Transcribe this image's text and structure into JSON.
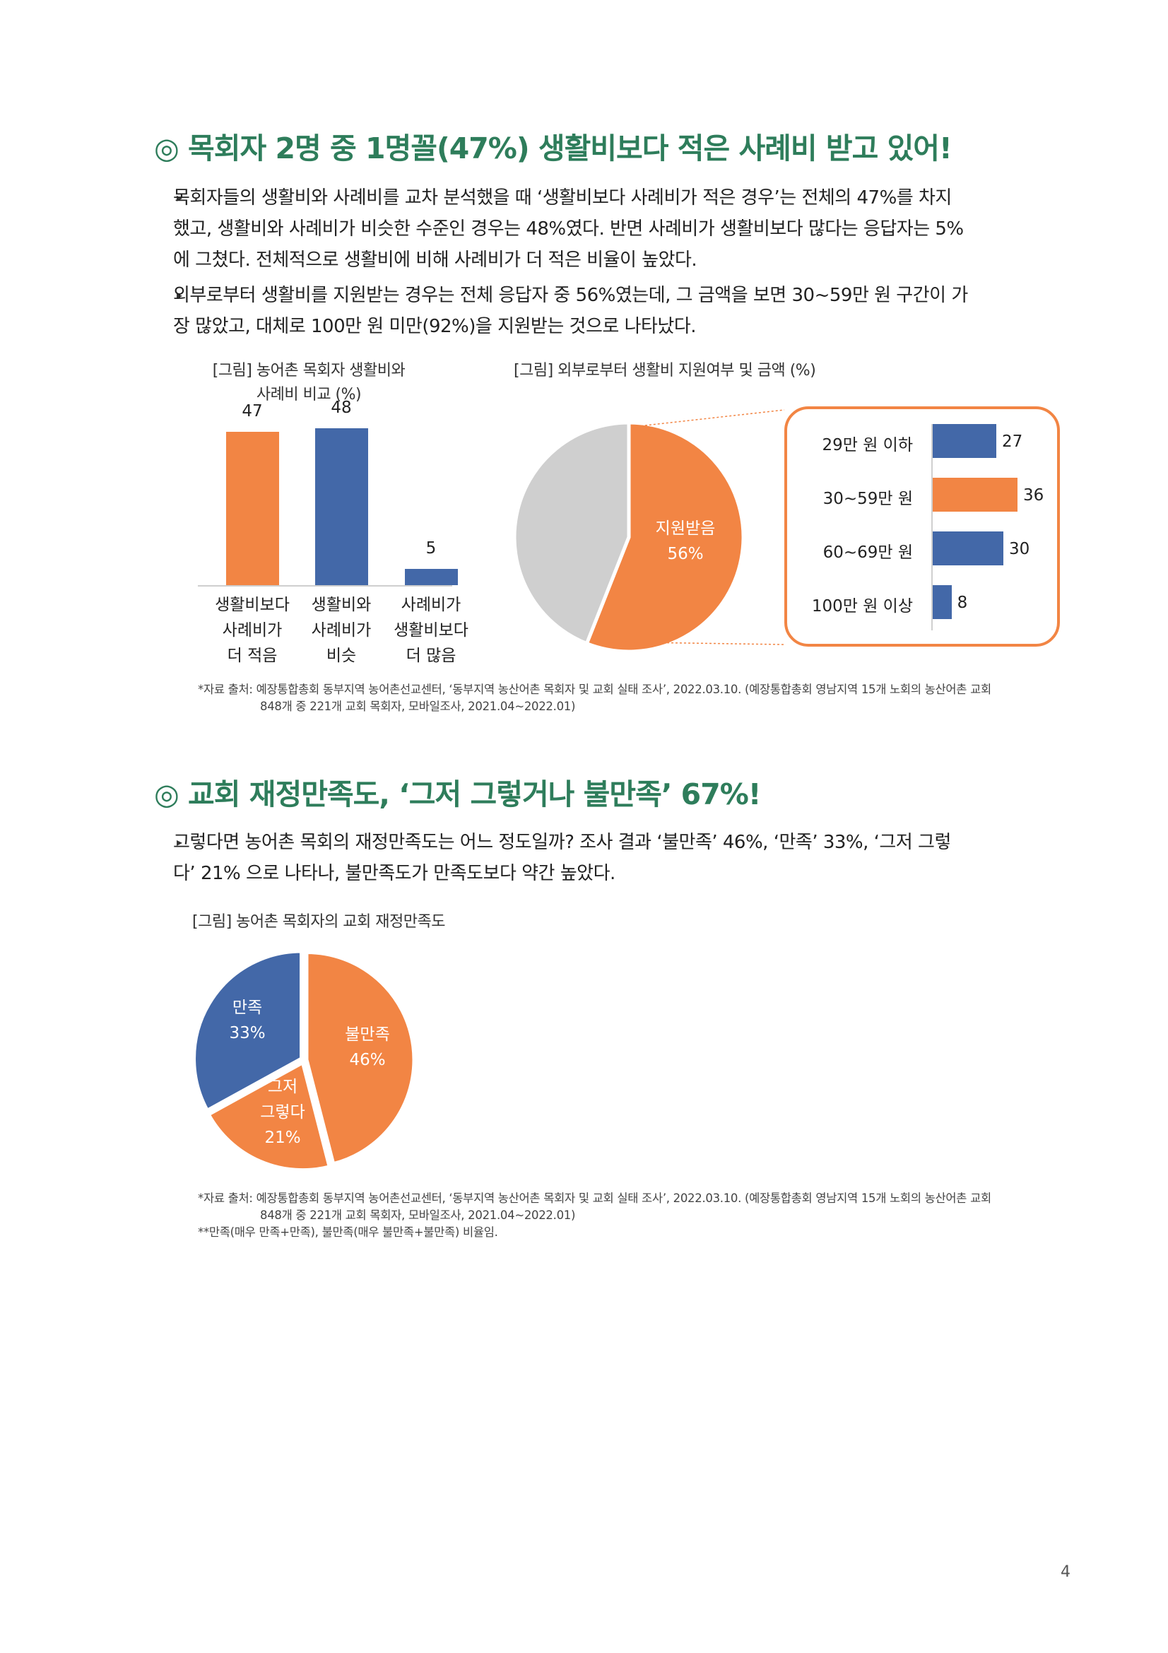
{
  "section1": {
    "heading": "◎ 목회자 2명 중 1명꼴(47%) 생활비보다 적은 사례비 받고 있어!",
    "bullet1_lines": [
      "목회자들의 생활비와 사례비를 교차 분석했을 때 ‘생활비보다 사례비가 적은 경우’는 전체의 47%를 차지",
      "했고, 생활비와 사례비가 비슷한 수준인 경우는 48%였다. 반면 사례비가 생활비보다 많다는 응답자는 5%",
      "에 그쳤다. 전체적으로 생활비에 비해 사례비가 더 적은 비율이 높았다."
    ],
    "bullet2_lines": [
      "외부로부터 생활비를 지원받는 경우는 전체 응답자 중 56%였는데, 그 금액을 보면 30~59만 원 구간이 가",
      "장 많았고, 대체로 100만 원 미만(92%)을 지원받는 것으로 나타났다."
    ],
    "fig1_caption_lines": [
      "[그림] 농어촌 목회자 생활비와",
      "사례비 비교 (%)"
    ],
    "fig2_caption": "[그림] 외부로부터 생활비 지원여부 및 금액 (%)",
    "source_lines": [
      "*자료 출처: 예장통합총회 동부지역 농어촌선교센터, ‘동부지역 농산어촌 목회자 및 교회 실태 조사’, 2022.03.10. (예장통합총회 영남지역 15개 노회의 농산어촌 교회",
      "848개 중 221개 교회 목회자, 모바일조사, 2021.04~2022.01)"
    ]
  },
  "section2": {
    "heading": "◎ 교회 재정만족도, ‘그저 그렇거나 불만족’ 67%!",
    "bullet1_lines": [
      "그렇다면 농어촌 목회의 재정만족도는 어느 정도일까? 조사 결과 ‘불만족’ 46%, ‘만족’ 33%, ‘그저 그렇",
      "다’ 21% 으로 나타나, 불만족도가 만족도보다 약간 높았다."
    ],
    "fig_caption": "[그림] 농어촌 목회자의 교회 재정만족도",
    "source_lines": [
      "*자료 출처: 예장통합총회 동부지역 농어촌선교센터, ‘동부지역 농산어촌 목회자 및 교회 실태 조사’, 2022.03.10. (예장통합총회 영남지역 15개 노회의 농산어촌 교회",
      "848개 중 221개 교회 목회자, 모바일조사, 2021.04~2022.01)",
      "**만족(매우 만족+만족), 불만족(매우 불만족+불만족) 비율임."
    ]
  },
  "page_number": "4",
  "colors": {
    "orange": "#f28544",
    "blue": "#4368a8",
    "gray": "#cfcfcf",
    "heading_green": "#2e7d5b",
    "callout_border": "#f28544"
  },
  "chart_data": [
    {
      "type": "bar",
      "categories": [
        "생활비보다 사례비가 더 적음",
        "생활비와 사례비가 비슷",
        "사례비가 생활비보다 더 많음"
      ],
      "category_lines": [
        [
          "생활비보다",
          "사례비가",
          "더 적음"
        ],
        [
          "생활비와",
          "사례비가",
          "비슷"
        ],
        [
          "사례비가",
          "생활비보다",
          "더 많음"
        ]
      ],
      "values": [
        47,
        48,
        5
      ],
      "value_labels": [
        "47",
        "48",
        "5"
      ],
      "bar_colors": [
        "#f28544",
        "#4368a8",
        "#4368a8"
      ],
      "ylim": [
        0,
        52
      ]
    },
    {
      "type": "pie",
      "slices": [
        {
          "label": "지원받음",
          "value": 56,
          "value_label": "56%",
          "color": "#f28544"
        },
        {
          "label": "",
          "value": 44,
          "value_label": "",
          "color": "#cfcfcf"
        }
      ]
    },
    {
      "type": "bar",
      "orientation": "horizontal",
      "categories": [
        "29만 원 이하",
        "30~59만 원",
        "60~69만 원",
        "100만 원 이상"
      ],
      "values": [
        27,
        36,
        30,
        8
      ],
      "value_labels": [
        "27",
        "36",
        "30",
        "8"
      ],
      "bar_colors": [
        "#4368a8",
        "#f28544",
        "#4368a8",
        "#4368a8"
      ],
      "xlim": [
        0,
        40
      ]
    },
    {
      "type": "pie",
      "slices": [
        {
          "label_lines": [
            "불만족"
          ],
          "value": 46,
          "value_label": "46%",
          "color": "#f28544"
        },
        {
          "label_lines": [
            "그저",
            "그렇다"
          ],
          "value": 21,
          "value_label": "21%",
          "color": "#f28544"
        },
        {
          "label_lines": [
            "만족"
          ],
          "value": 33,
          "value_label": "33%",
          "color": "#4368a8"
        }
      ]
    }
  ]
}
